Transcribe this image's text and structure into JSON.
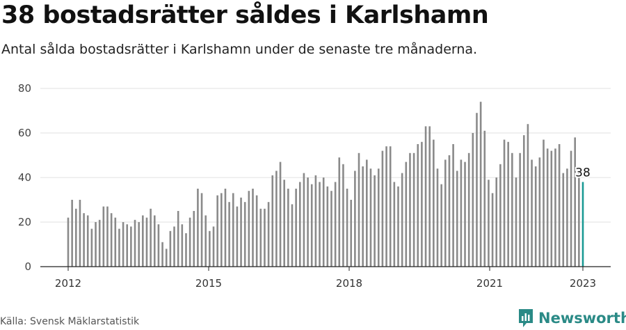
{
  "header": {
    "title": "38 bostadsrätter såldes i Karlshamn",
    "subtitle": "Antal sålda bostadsrätter i Karlshamn under de senaste tre månaderna."
  },
  "footer": {
    "source": "Källa: Svensk Mäklarstatistik",
    "brand": "Newsworthy"
  },
  "colors": {
    "bar": "#8a8a8a",
    "highlight": "#1a9a94",
    "grid": "#e2e2e2",
    "brand": "#2a8a86"
  },
  "chart_data": {
    "type": "bar",
    "x_start": "2012-01",
    "x_end": "2023-01",
    "ylim": [
      0,
      80
    ],
    "y_ticks": [
      0,
      20,
      40,
      60,
      80
    ],
    "x_ticks": [
      "2012",
      "2015",
      "2018",
      "2021",
      "2023"
    ],
    "values": [
      22,
      30,
      26,
      30,
      24,
      23,
      17,
      20,
      21,
      27,
      27,
      24,
      22,
      17,
      20,
      19,
      18,
      21,
      20,
      23,
      22,
      26,
      23,
      19,
      11,
      8,
      16,
      18,
      25,
      19,
      15,
      22,
      25,
      35,
      33,
      23,
      16,
      18,
      32,
      33,
      35,
      29,
      33,
      27,
      31,
      29,
      34,
      35,
      32,
      26,
      26,
      29,
      41,
      43,
      47,
      39,
      35,
      28,
      35,
      38,
      42,
      40,
      37,
      41,
      38,
      40,
      36,
      34,
      38,
      49,
      46,
      35,
      30,
      43,
      51,
      45,
      48,
      44,
      41,
      44,
      52,
      54,
      54,
      38,
      36,
      42,
      47,
      51,
      51,
      55,
      56,
      63,
      63,
      57,
      44,
      37,
      48,
      50,
      55,
      43,
      48,
      47,
      51,
      60,
      69,
      74,
      61,
      39,
      33,
      40,
      46,
      57,
      56,
      51,
      40,
      51,
      59,
      64,
      48,
      45,
      49,
      57,
      53,
      52,
      53,
      55,
      42,
      44,
      52,
      58,
      42,
      38
    ],
    "highlight_label": "38",
    "grid": true
  }
}
